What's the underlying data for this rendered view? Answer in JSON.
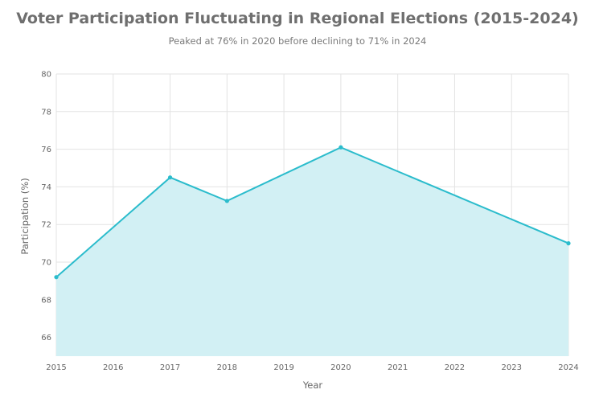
{
  "chart_data": {
    "type": "area",
    "title": "Voter Participation Fluctuating in Regional Elections (2015-2024)",
    "subtitle": "Peaked at 76% in 2020 before declining to 71% in 2024",
    "xlabel": "Year",
    "ylabel": "Participation (%)",
    "x": [
      2015,
      2017,
      2018,
      2020,
      2024
    ],
    "values": [
      69.2,
      74.5,
      73.25,
      76.1,
      71.0
    ],
    "xlim": [
      2015,
      2024
    ],
    "ylim": [
      65,
      80
    ],
    "xticks": [
      "2015",
      "2016",
      "2017",
      "2018",
      "2019",
      "2020",
      "2021",
      "2022",
      "2023",
      "2024"
    ],
    "yticks": [
      "66",
      "68",
      "70",
      "72",
      "74",
      "76",
      "78",
      "80"
    ],
    "grid": true,
    "colors": {
      "line": "#2bbccc",
      "fill": "#d2f0f4",
      "grid": "#e3e3e3"
    }
  }
}
